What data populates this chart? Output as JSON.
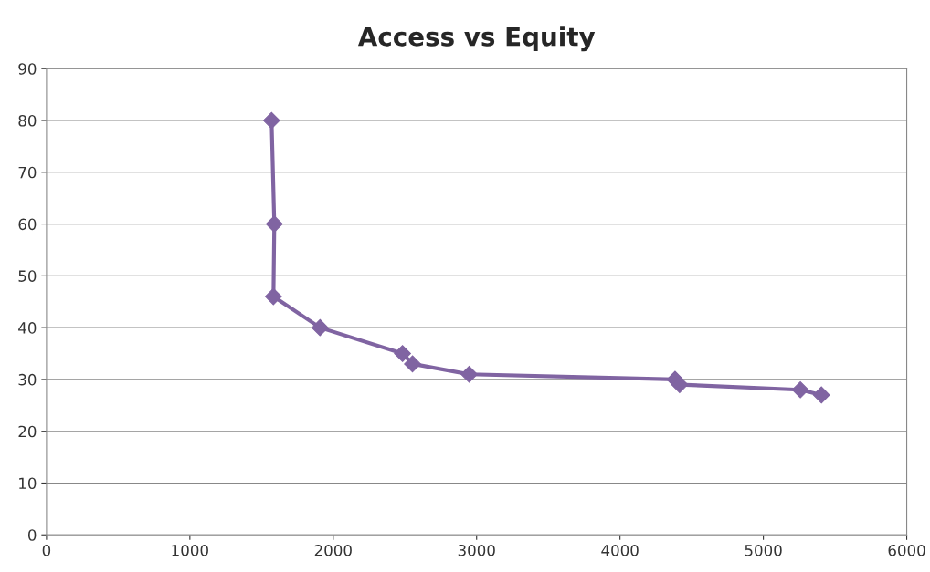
{
  "chart_data": {
    "type": "line",
    "title": "Access vs Equity",
    "x": [
      1570,
      1589,
      1583,
      1908,
      2483,
      2553,
      2948,
      4384,
      4416,
      5258,
      5405
    ],
    "series": [
      {
        "color": "#8064a2",
        "values": [
          80,
          60,
          46,
          40,
          35,
          33,
          31,
          30,
          29,
          28,
          27
        ]
      }
    ],
    "xlim": [
      0,
      6000
    ],
    "xticks": [
      0,
      1000,
      2000,
      3000,
      4000,
      5000,
      6000
    ],
    "ylim": [
      0,
      90
    ],
    "yticks": [
      0,
      10,
      20,
      30,
      40,
      50,
      60,
      70,
      80,
      90
    ],
    "grid": "y",
    "marker": "diamond",
    "line_style": "solid"
  }
}
